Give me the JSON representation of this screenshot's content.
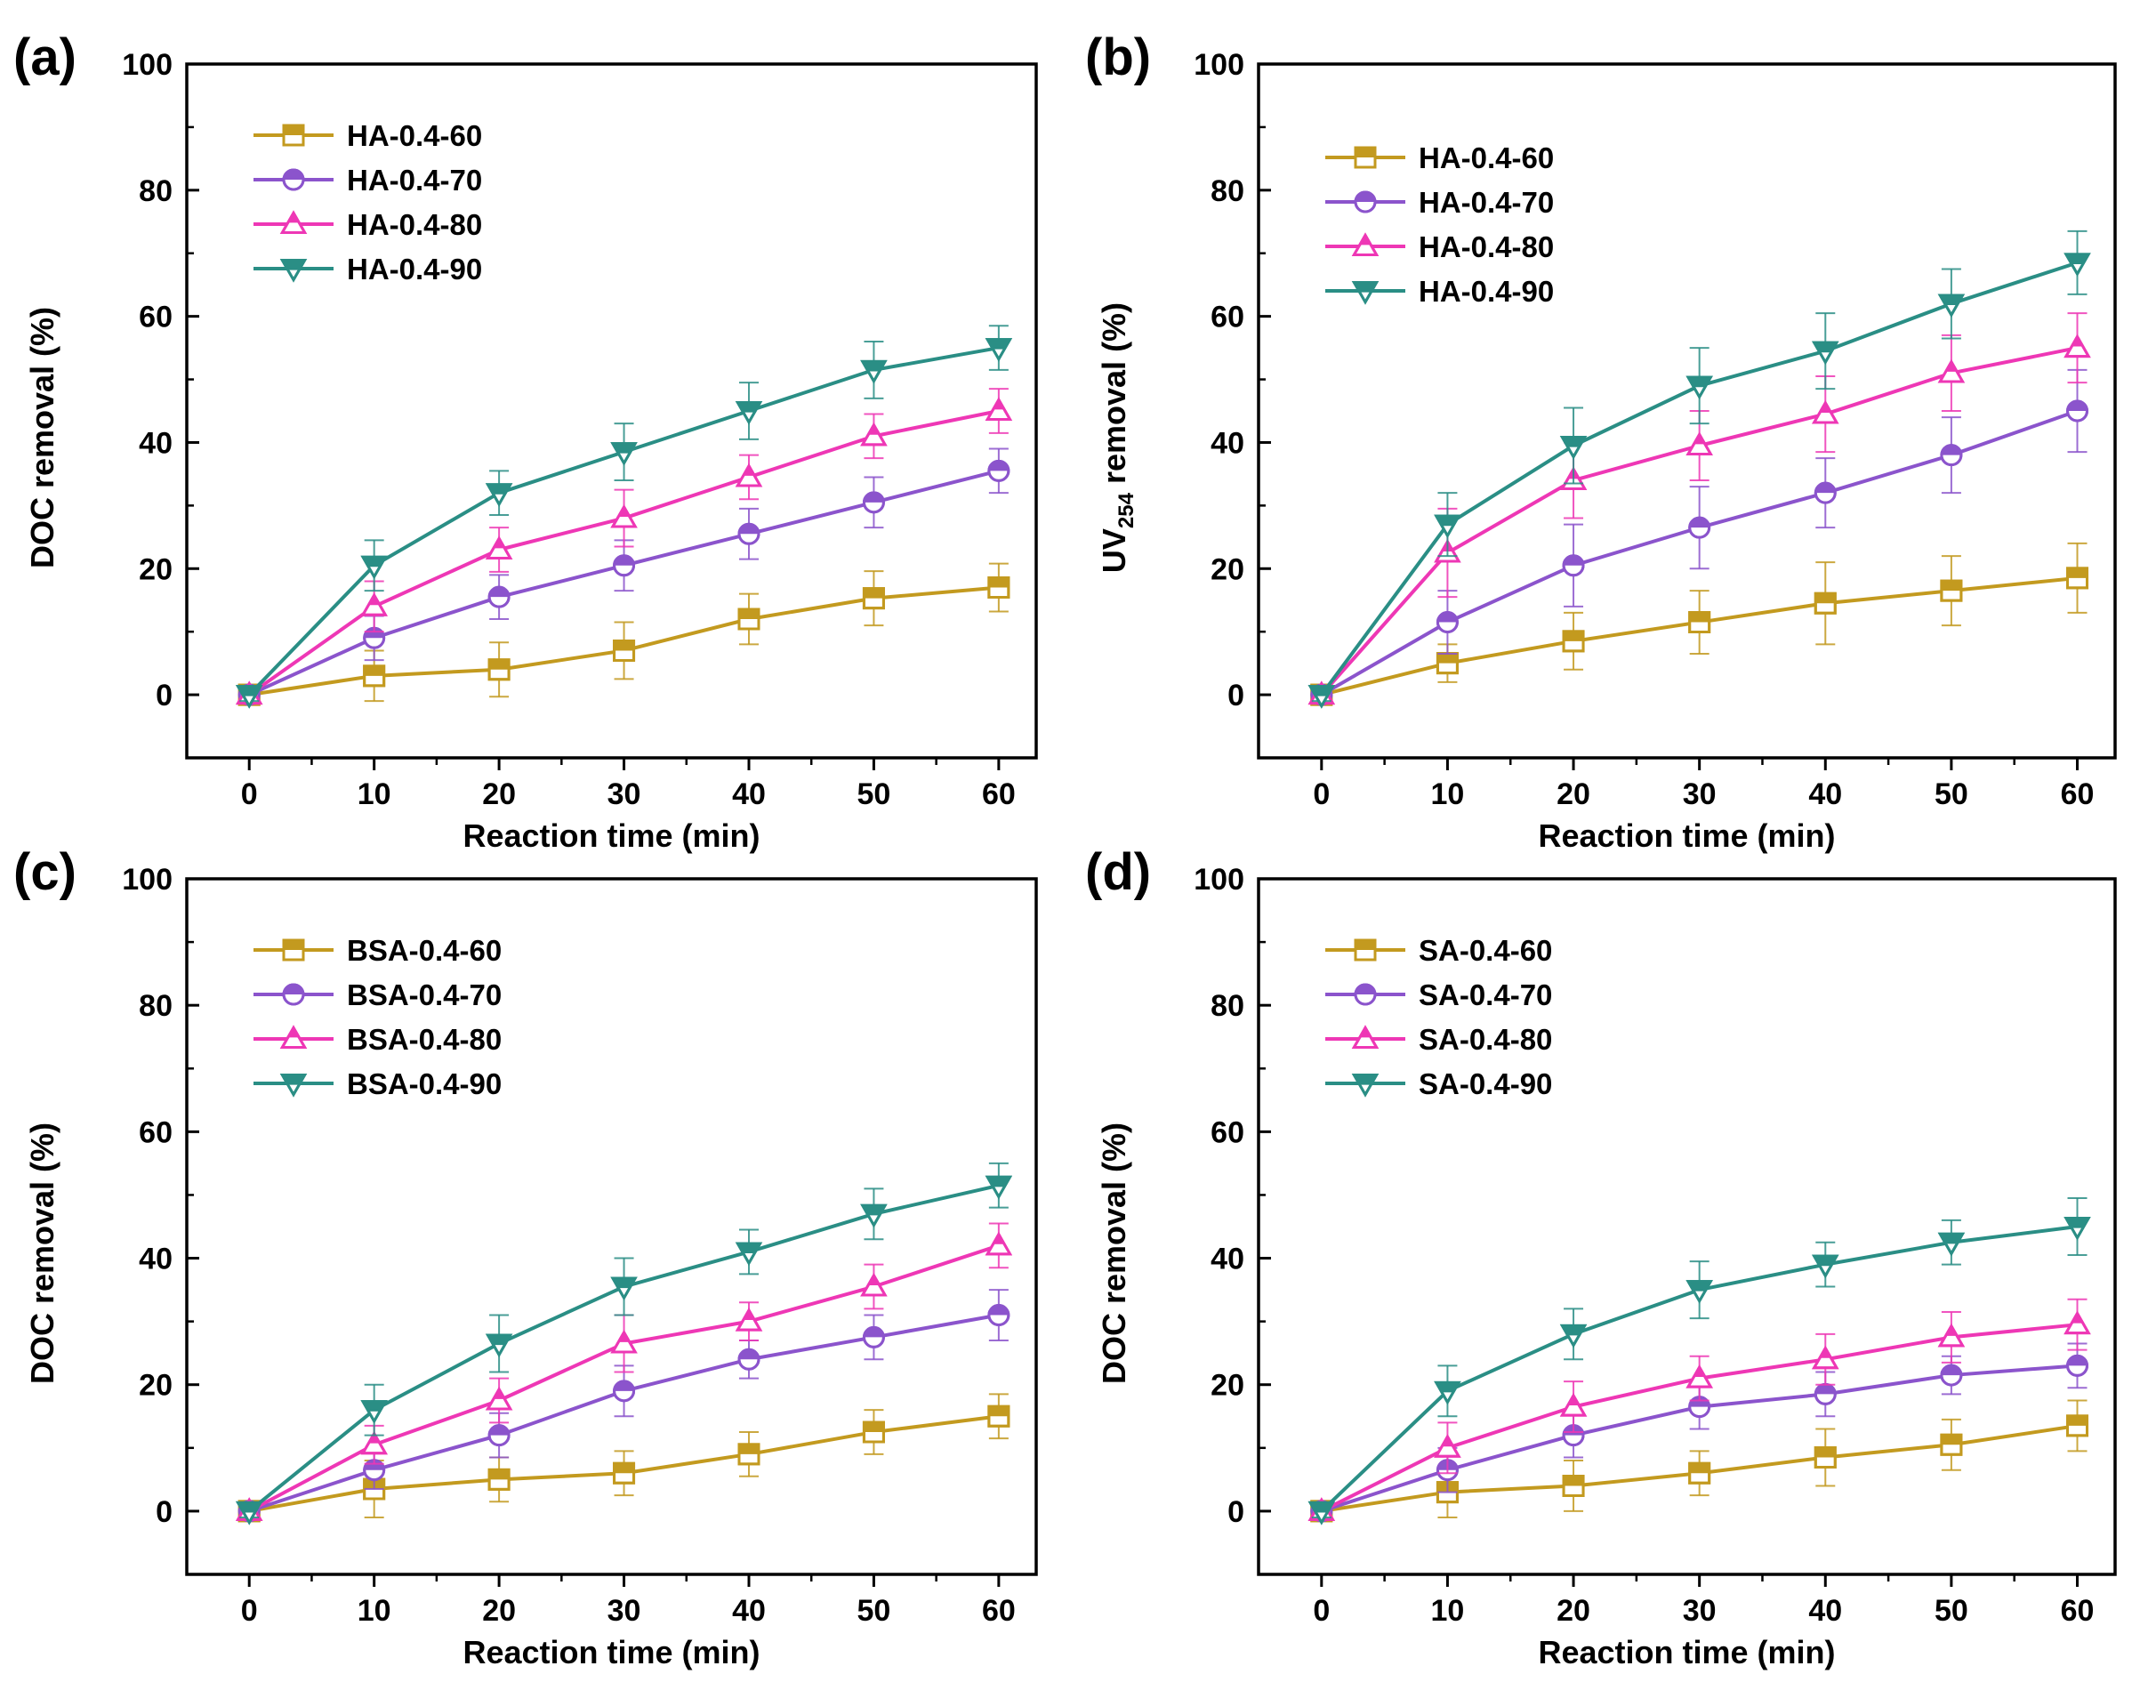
{
  "chart_data": [
    {
      "panel": "(a)",
      "type": "line",
      "xlabel": "Reaction time (min)",
      "ylabel": "DOC removal (%)",
      "ylabel_main": "",
      "ylabel_sub": "",
      "ylabel_rest": "",
      "x": [
        0,
        10,
        20,
        30,
        40,
        50,
        60
      ],
      "xlim": [
        -5,
        63
      ],
      "ylim": [
        -10,
        100
      ],
      "xticks": [
        0,
        10,
        20,
        30,
        40,
        50,
        60
      ],
      "yticks": [
        0,
        20,
        40,
        60,
        80,
        100
      ],
      "xtick_labels": [
        "0",
        "10",
        "20",
        "30",
        "40",
        "50",
        "60"
      ],
      "ytick_labels": [
        "0",
        "20",
        "40",
        "60",
        "80",
        "100"
      ],
      "legend_position": "top-left",
      "series": [
        {
          "name": "HA-0.4-60",
          "color": "#C39A1F",
          "marker": "square",
          "values": [
            0,
            3,
            4,
            7,
            12,
            15.3,
            17
          ],
          "errors": [
            1,
            4,
            4.3,
            4.5,
            4,
            4.3,
            3.8
          ]
        },
        {
          "name": "HA-0.4-70",
          "color": "#8B54CC",
          "marker": "circle",
          "values": [
            0,
            9,
            15.5,
            20.5,
            25.5,
            30.5,
            35.5
          ],
          "errors": [
            1,
            3.5,
            3.5,
            4,
            4,
            4,
            3.5
          ]
        },
        {
          "name": "HA-0.4-80",
          "color": "#EE37B5",
          "marker": "triangle-up",
          "values": [
            0,
            14,
            23,
            28,
            34.5,
            41,
            45
          ],
          "errors": [
            1,
            4,
            3.5,
            4.5,
            3.5,
            3.5,
            3.5
          ]
        },
        {
          "name": "HA-0.4-90",
          "color": "#2A8E85",
          "marker": "triangle-down",
          "values": [
            0,
            20.5,
            32,
            38.5,
            45,
            51.5,
            55
          ],
          "errors": [
            1,
            4,
            3.5,
            4.5,
            4.5,
            4.5,
            3.5
          ]
        }
      ]
    },
    {
      "panel": "(b)",
      "type": "line",
      "xlabel": "Reaction time (min)",
      "ylabel": "UV254 removal (%)",
      "ylabel_main": "UV",
      "ylabel_sub": "254",
      "ylabel_rest": " removal (%)",
      "x": [
        0,
        10,
        20,
        30,
        40,
        50,
        60
      ],
      "xlim": [
        -5,
        63
      ],
      "ylim": [
        -10,
        100
      ],
      "xticks": [
        0,
        10,
        20,
        30,
        40,
        50,
        60
      ],
      "yticks": [
        0,
        20,
        40,
        60,
        80,
        100
      ],
      "xtick_labels": [
        "0",
        "10",
        "20",
        "30",
        "40",
        "50",
        "60"
      ],
      "ytick_labels": [
        "0",
        "20",
        "40",
        "60",
        "80",
        "100"
      ],
      "legend_position": "top-left",
      "series": [
        {
          "name": "HA-0.4-60",
          "color": "#C39A1F",
          "marker": "square",
          "values": [
            0,
            5,
            8.5,
            11.5,
            14.5,
            16.5,
            18.5
          ],
          "errors": [
            1,
            3,
            4.5,
            5,
            6.5,
            5.5,
            5.5
          ]
        },
        {
          "name": "HA-0.4-70",
          "color": "#8B54CC",
          "marker": "circle",
          "values": [
            0,
            11.5,
            20.5,
            26.5,
            32,
            38,
            45
          ],
          "errors": [
            1,
            5,
            6.5,
            6.5,
            5.5,
            6,
            6.5
          ]
        },
        {
          "name": "HA-0.4-80",
          "color": "#EE37B5",
          "marker": "triangle-up",
          "values": [
            0,
            22.5,
            34,
            39.5,
            44.5,
            51,
            55
          ],
          "errors": [
            1,
            7,
            6,
            5.5,
            6,
            6,
            5.5
          ]
        },
        {
          "name": "HA-0.4-90",
          "color": "#2A8E85",
          "marker": "triangle-down",
          "values": [
            0,
            27,
            39.5,
            49,
            54.5,
            62,
            68.5
          ],
          "errors": [
            1,
            5,
            6,
            6,
            6,
            5.5,
            5
          ]
        }
      ]
    },
    {
      "panel": "(c)",
      "type": "line",
      "xlabel": "Reaction time (min)",
      "ylabel": "DOC removal (%)",
      "ylabel_main": "",
      "ylabel_sub": "",
      "ylabel_rest": "",
      "x": [
        0,
        10,
        20,
        30,
        40,
        50,
        60
      ],
      "xlim": [
        -5,
        63
      ],
      "ylim": [
        -10,
        100
      ],
      "xticks": [
        0,
        10,
        20,
        30,
        40,
        50,
        60
      ],
      "yticks": [
        0,
        20,
        40,
        60,
        80,
        100
      ],
      "xtick_labels": [
        "0",
        "10",
        "20",
        "30",
        "40",
        "50",
        "60"
      ],
      "ytick_labels": [
        "0",
        "20",
        "40",
        "60",
        "80",
        "100"
      ],
      "legend_position": "top-left",
      "series": [
        {
          "name": "BSA-0.4-60",
          "color": "#C39A1F",
          "marker": "square",
          "values": [
            0,
            3.5,
            5,
            6,
            9,
            12.5,
            15
          ],
          "errors": [
            1,
            4.5,
            3.5,
            3.5,
            3.5,
            3.5,
            3.5
          ]
        },
        {
          "name": "BSA-0.4-70",
          "color": "#8B54CC",
          "marker": "circle",
          "values": [
            0,
            6.5,
            12,
            19,
            24,
            27.5,
            31
          ],
          "errors": [
            1,
            3,
            3.5,
            4,
            3,
            3.5,
            4
          ]
        },
        {
          "name": "BSA-0.4-80",
          "color": "#EE37B5",
          "marker": "triangle-up",
          "values": [
            0,
            10.5,
            17.5,
            26.5,
            30,
            35.5,
            42
          ],
          "errors": [
            1,
            3,
            3.5,
            4.5,
            3,
            3.5,
            3.5
          ]
        },
        {
          "name": "BSA-0.4-90",
          "color": "#2A8E85",
          "marker": "triangle-down",
          "values": [
            0,
            16,
            26.5,
            35.5,
            41,
            47,
            51.5
          ],
          "errors": [
            1,
            4,
            4.5,
            4.5,
            3.5,
            4,
            3.5
          ]
        }
      ]
    },
    {
      "panel": "(d)",
      "type": "line",
      "xlabel": "Reaction time (min)",
      "ylabel": "DOC removal (%)",
      "ylabel_main": "",
      "ylabel_sub": "",
      "ylabel_rest": "",
      "x": [
        0,
        10,
        20,
        30,
        40,
        50,
        60
      ],
      "xlim": [
        -5,
        63
      ],
      "ylim": [
        -10,
        100
      ],
      "xticks": [
        0,
        10,
        20,
        30,
        40,
        50,
        60
      ],
      "yticks": [
        0,
        20,
        40,
        60,
        80,
        100
      ],
      "xtick_labels": [
        "0",
        "10",
        "20",
        "30",
        "40",
        "50",
        "60"
      ],
      "ytick_labels": [
        "0",
        "20",
        "40",
        "60",
        "80",
        "100"
      ],
      "legend_position": "top-left",
      "series": [
        {
          "name": "SA-0.4-60",
          "color": "#C39A1F",
          "marker": "square",
          "values": [
            0,
            3,
            4,
            6,
            8.5,
            10.5,
            13.5
          ],
          "errors": [
            1,
            4,
            4,
            3.5,
            4.5,
            4,
            4
          ]
        },
        {
          "name": "SA-0.4-70",
          "color": "#8B54CC",
          "marker": "circle",
          "values": [
            0,
            6.5,
            12,
            16.5,
            18.5,
            21.5,
            23
          ],
          "errors": [
            1,
            3.5,
            3.5,
            3.5,
            3.5,
            3,
            3.5
          ]
        },
        {
          "name": "SA-0.4-80",
          "color": "#EE37B5",
          "marker": "triangle-up",
          "values": [
            0,
            10,
            16.5,
            21,
            24,
            27.5,
            29.5
          ],
          "errors": [
            1,
            4,
            4,
            3.5,
            4,
            4,
            4
          ]
        },
        {
          "name": "SA-0.4-90",
          "color": "#2A8E85",
          "marker": "triangle-down",
          "values": [
            0,
            19,
            28,
            35,
            39,
            42.5,
            45
          ],
          "errors": [
            1,
            4,
            4,
            4.5,
            3.5,
            3.5,
            4.5
          ]
        }
      ]
    }
  ]
}
